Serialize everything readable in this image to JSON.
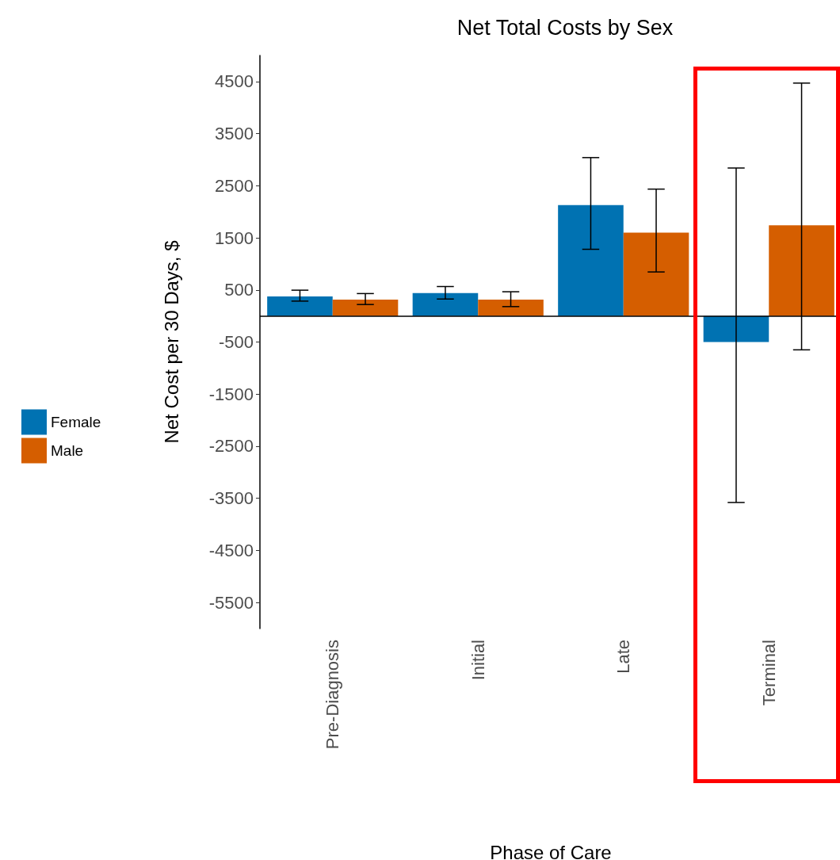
{
  "chart_data": {
    "type": "bar",
    "title": "Net Total Costs by Sex",
    "xlabel": "Phase of Care",
    "ylabel": "Net Cost per 30 Days, $",
    "categories": [
      "Pre-Diagnosis",
      "Initial",
      "Late",
      "Terminal"
    ],
    "series": [
      {
        "name": "Female",
        "color": "#0072b2",
        "values": [
          375,
          440,
          2130,
          -500
        ],
        "errors": [
          [
            285,
            495
          ],
          [
            325,
            565
          ],
          [
            1280,
            3040
          ],
          [
            -3580,
            2840
          ]
        ]
      },
      {
        "name": "Male",
        "color": "#d55e00",
        "values": [
          315,
          315,
          1600,
          1740
        ],
        "errors": [
          [
            220,
            430
          ],
          [
            180,
            465
          ],
          [
            845,
            2435
          ],
          [
            -650,
            4470
          ]
        ]
      }
    ],
    "ylim": [
      -6000,
      5000
    ],
    "yticks": [
      4500,
      3500,
      2500,
      1500,
      500,
      -500,
      -1500,
      -2500,
      -3500,
      -4500,
      -5500
    ],
    "ref_lines": [
      {
        "axis": "y",
        "value": 0,
        "color": "#000000"
      }
    ],
    "legend": "left",
    "grid": false
  }
}
